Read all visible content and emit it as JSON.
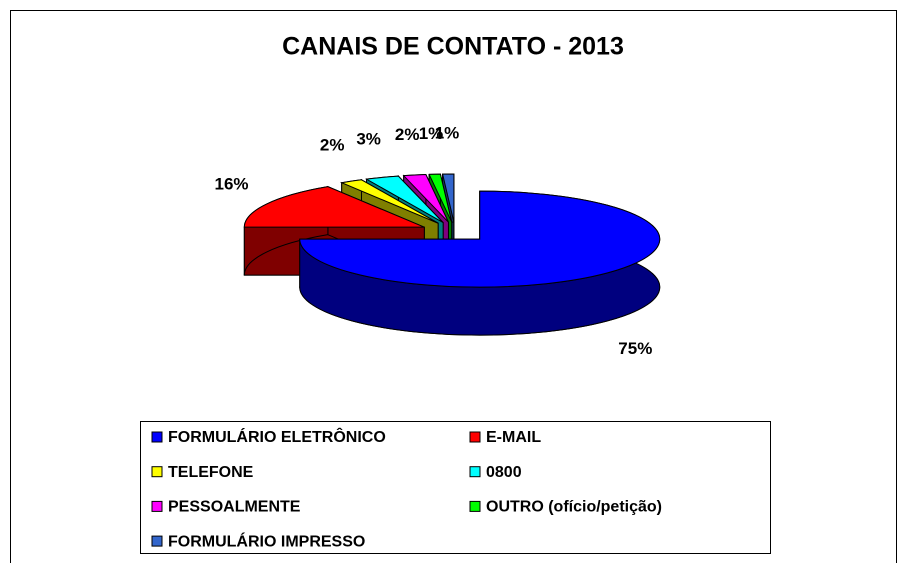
{
  "chart_data": {
    "type": "pie",
    "title": "CANAIS DE CONTATO - 2013",
    "categories": [
      "FORMULÁRIO ELETRÔNICO",
      "E-MAIL",
      "TELEFONE",
      "0800",
      "PESSOALMENTE",
      "OUTRO (ofício/petição)",
      "FORMULÁRIO IMPRESSO"
    ],
    "values": [
      75,
      16,
      2,
      3,
      2,
      1,
      1
    ],
    "value_labels": [
      "75%",
      "16%",
      "2%",
      "3%",
      "2%",
      "1%",
      "1%"
    ],
    "colors": [
      "#0000ff",
      "#ff0000",
      "#ffff00",
      "#00ffff",
      "#ff00ff",
      "#00ff00",
      "#3366cc"
    ],
    "legend": "bottom"
  }
}
